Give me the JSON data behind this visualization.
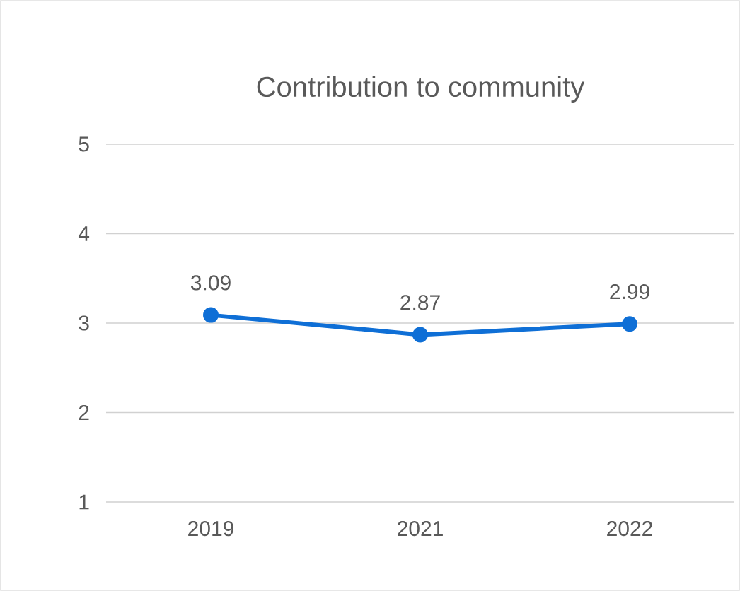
{
  "chart_data": {
    "type": "line",
    "title": "Contribution to community",
    "categories": [
      "2019",
      "2021",
      "2022"
    ],
    "series": [
      {
        "color": "#0f6fd6",
        "values": [
          3.09,
          2.87,
          2.99
        ]
      }
    ],
    "ylim": [
      1,
      5
    ],
    "yticks": [
      1,
      2,
      3,
      4,
      5
    ],
    "grid": "y",
    "data_labels": true,
    "marker": "circle",
    "line_style": "solid"
  }
}
